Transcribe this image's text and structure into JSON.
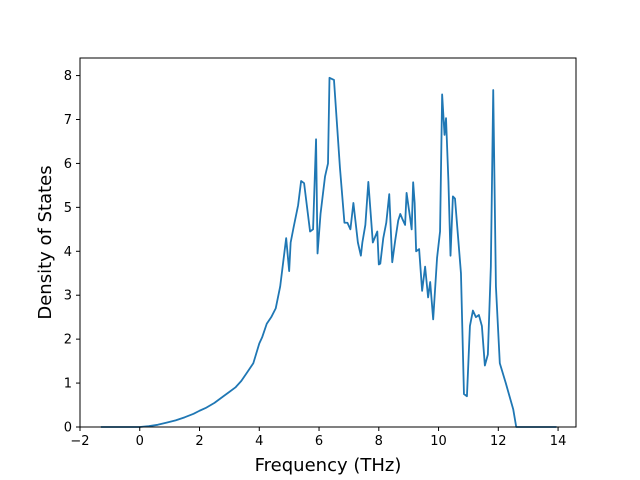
{
  "chart_data": {
    "type": "line",
    "title": "",
    "xlabel": "Frequency (THz)",
    "ylabel": "Density of States",
    "xlim": [
      -2,
      14.6
    ],
    "ylim": [
      0,
      8.4
    ],
    "xticks": [
      -2,
      0,
      2,
      4,
      6,
      8,
      10,
      12,
      14
    ],
    "yticks": [
      0,
      1,
      2,
      3,
      4,
      5,
      6,
      7,
      8
    ],
    "grid": false,
    "series_color": "#1f77b4",
    "series": [
      {
        "x": [
          -1.3,
          -1.0,
          -0.5,
          0.0,
          0.3,
          0.6,
          0.9,
          1.2,
          1.5,
          1.8,
          2.0,
          2.2,
          2.5,
          2.8,
          3.0,
          3.2,
          3.4,
          3.6,
          3.8,
          4.0,
          4.1,
          4.25,
          4.4,
          4.55,
          4.7,
          4.8,
          4.9,
          5.0,
          5.05,
          5.15,
          5.3,
          5.4,
          5.5,
          5.6,
          5.7,
          5.8,
          5.9,
          5.95,
          6.05,
          6.2,
          6.3,
          6.35,
          6.5,
          6.7,
          6.85,
          6.95,
          7.05,
          7.15,
          7.3,
          7.4,
          7.45,
          7.55,
          7.65,
          7.8,
          7.95,
          8.0,
          8.05,
          8.15,
          8.25,
          8.35,
          8.45,
          8.55,
          8.65,
          8.72,
          8.78,
          8.88,
          8.93,
          9.05,
          9.1,
          9.15,
          9.2,
          9.25,
          9.35,
          9.45,
          9.55,
          9.65,
          9.72,
          9.82,
          9.95,
          10.05,
          10.12,
          10.2,
          10.25,
          10.33,
          10.4,
          10.48,
          10.55,
          10.65,
          10.75,
          10.85,
          10.95,
          11.05,
          11.15,
          11.25,
          11.35,
          11.45,
          11.55,
          11.65,
          11.75,
          11.83,
          11.92,
          12.05,
          12.25,
          12.5,
          12.6,
          12.65,
          13.0,
          13.5,
          13.95
        ],
        "y": [
          0.0,
          0.0,
          0.0,
          0.0,
          0.02,
          0.05,
          0.1,
          0.15,
          0.22,
          0.3,
          0.37,
          0.43,
          0.55,
          0.7,
          0.8,
          0.9,
          1.05,
          1.25,
          1.45,
          1.9,
          2.05,
          2.35,
          2.5,
          2.7,
          3.2,
          3.75,
          4.3,
          3.55,
          4.2,
          4.55,
          5.05,
          5.6,
          5.55,
          5.0,
          4.45,
          4.5,
          6.55,
          3.95,
          4.85,
          5.7,
          6.0,
          7.95,
          7.9,
          5.9,
          4.65,
          4.65,
          4.5,
          5.1,
          4.2,
          3.9,
          4.2,
          4.6,
          5.58,
          4.2,
          4.45,
          3.7,
          3.72,
          4.3,
          4.65,
          5.3,
          3.75,
          4.25,
          4.7,
          4.85,
          4.75,
          4.6,
          5.33,
          4.75,
          4.5,
          5.57,
          5.1,
          4.0,
          4.05,
          3.1,
          3.65,
          2.95,
          3.3,
          2.45,
          3.85,
          4.45,
          7.57,
          6.65,
          7.03,
          5.6,
          3.9,
          5.25,
          5.2,
          4.35,
          3.5,
          0.75,
          0.7,
          2.3,
          2.65,
          2.5,
          2.55,
          2.3,
          1.4,
          1.65,
          3.65,
          7.67,
          3.2,
          1.45,
          1.0,
          0.4,
          0.0,
          0.0,
          0.0,
          0.0,
          0.0
        ]
      }
    ]
  }
}
